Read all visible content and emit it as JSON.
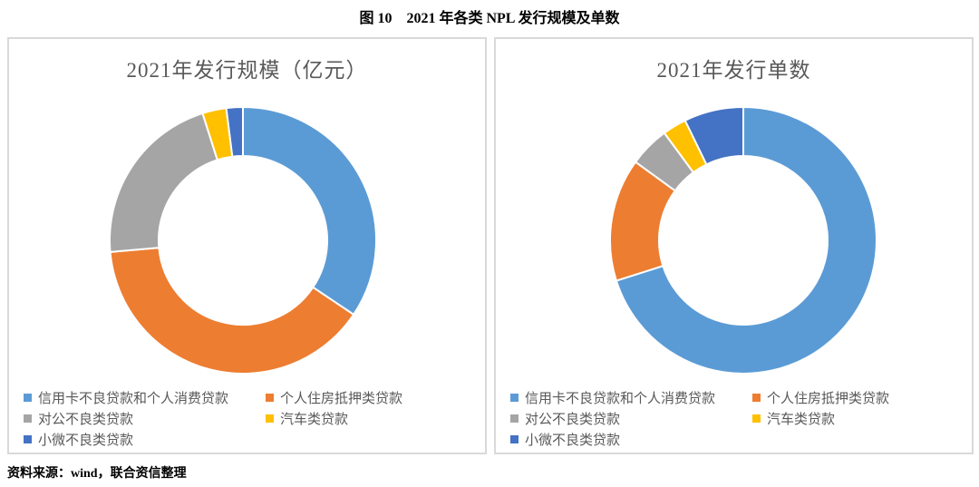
{
  "page": {
    "caption": "图 10　2021 年各类 NPL 发行规模及单数",
    "source_note": "资料来源：wind，联合资信整理"
  },
  "style_colors": {
    "panel_border": "#D9D9D9",
    "chart_title": "#595959",
    "legend_text": "#595959",
    "caption_text": "#000000"
  },
  "chart_data": [
    {
      "type": "pie",
      "subtype": "donut",
      "title": "2021年发行规模（亿元）",
      "categories": [
        "信用卡不良贷款和个人消费贷款",
        "个人住房抵押类贷款",
        "对公不良类贷款",
        "汽车类贷款",
        "小微不良类贷款"
      ],
      "values": [
        34.4,
        39.2,
        21.5,
        2.9,
        2.0
      ],
      "values_unit": "percent_share_estimated_from_arc_angles",
      "colors": [
        "#5B9BD5",
        "#ED7D31",
        "#A5A5A5",
        "#FFC000",
        "#4472C4"
      ],
      "start_angle_deg": 0,
      "direction": "clockwise",
      "hole_ratio": 0.63,
      "slice_border_color": "#FFFFFF",
      "legend_position": "bottom",
      "grid": false
    },
    {
      "type": "pie",
      "subtype": "donut",
      "title": "2021年发行单数",
      "categories": [
        "信用卡不良贷款和个人消费贷款",
        "个人住房抵押类贷款",
        "对公不良类贷款",
        "汽车类贷款",
        "小微不良类贷款"
      ],
      "values": [
        70.1,
        14.9,
        4.9,
        2.9,
        7.2
      ],
      "values_unit": "percent_share_estimated_from_arc_angles",
      "colors": [
        "#5B9BD5",
        "#ED7D31",
        "#A5A5A5",
        "#FFC000",
        "#4472C4"
      ],
      "start_angle_deg": 0,
      "direction": "clockwise",
      "hole_ratio": 0.63,
      "slice_border_color": "#FFFFFF",
      "legend_position": "bottom",
      "grid": false
    }
  ]
}
